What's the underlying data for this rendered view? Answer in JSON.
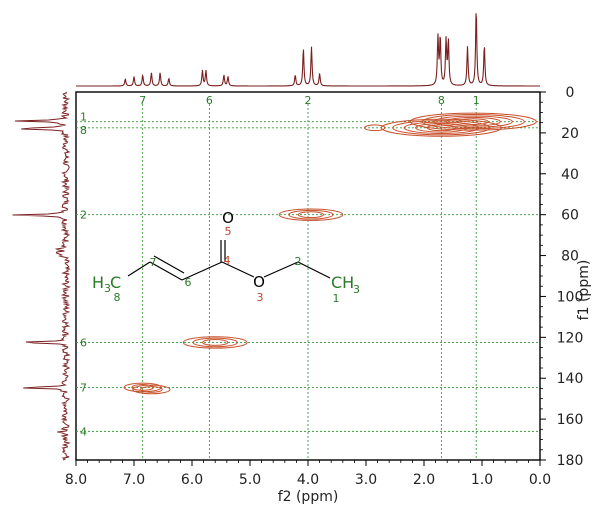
{
  "chart_data": {
    "type": "heatmap",
    "title": "",
    "xlabel": "f2 (ppm)",
    "ylabel": "f1 (ppm)",
    "xlim": [
      8.0,
      0.0
    ],
    "ylim": [
      0,
      180
    ],
    "x_ticks": [
      "8.0",
      "7.0",
      "6.0",
      "5.0",
      "4.0",
      "3.0",
      "2.0",
      "1.0",
      "0.0"
    ],
    "y_ticks": [
      "0",
      "20",
      "40",
      "60",
      "80",
      "100",
      "120",
      "140",
      "160",
      "180"
    ],
    "x_tick_values": [
      8,
      7,
      6,
      5,
      4,
      3,
      2,
      1,
      0
    ],
    "y_tick_values": [
      0,
      20,
      40,
      60,
      80,
      100,
      120,
      140,
      160,
      180
    ],
    "h_peaks": [
      {
        "label": "7",
        "ppm": 6.85
      },
      {
        "label": "6",
        "ppm": 5.7
      },
      {
        "label": "2",
        "ppm": 4.0
      },
      {
        "label": "8",
        "ppm": 1.7
      },
      {
        "label": "1",
        "ppm": 1.1
      }
    ],
    "c_peaks": [
      {
        "label": "1",
        "ppm": 14.5
      },
      {
        "label": "8",
        "ppm": 17.5
      },
      {
        "label": "2",
        "ppm": 60.0
      },
      {
        "label": "6",
        "ppm": 122.5
      },
      {
        "label": "7",
        "ppm": 144.5
      },
      {
        "label": "4",
        "ppm": 166.0
      }
    ],
    "cross_peaks": [
      {
        "f2": 1.15,
        "f1": 14.5,
        "intensity": 1.0
      },
      {
        "f2": 1.7,
        "f1": 17.5,
        "intensity": 0.9
      },
      {
        "f2": 2.85,
        "f1": 17.5,
        "intensity": 0.2
      },
      {
        "f2": 3.95,
        "f1": 60.0,
        "intensity": 0.6
      },
      {
        "f2": 5.6,
        "f1": 122.5,
        "intensity": 0.6
      },
      {
        "f2": 6.85,
        "f1": 144.5,
        "intensity": 0.3
      },
      {
        "f2": 6.7,
        "f1": 145.5,
        "intensity": 0.3
      }
    ],
    "proton_spectrum": [
      {
        "ppm": 7.15,
        "height": 0.09
      },
      {
        "ppm": 7.0,
        "height": 0.12
      },
      {
        "ppm": 6.85,
        "height": 0.14
      },
      {
        "ppm": 6.7,
        "height": 0.17
      },
      {
        "ppm": 6.55,
        "height": 0.17
      },
      {
        "ppm": 6.4,
        "height": 0.1
      },
      {
        "ppm": 5.82,
        "height": 0.2
      },
      {
        "ppm": 5.76,
        "height": 0.2
      },
      {
        "ppm": 5.45,
        "height": 0.14
      },
      {
        "ppm": 5.38,
        "height": 0.12
      },
      {
        "ppm": 4.22,
        "height": 0.14
      },
      {
        "ppm": 4.08,
        "height": 0.48
      },
      {
        "ppm": 3.94,
        "height": 0.5
      },
      {
        "ppm": 3.8,
        "height": 0.16
      },
      {
        "ppm": 1.76,
        "height": 0.62
      },
      {
        "ppm": 1.72,
        "height": 0.62
      },
      {
        "ppm": 1.62,
        "height": 0.58
      },
      {
        "ppm": 1.58,
        "height": 0.58
      },
      {
        "ppm": 1.25,
        "height": 0.5
      },
      {
        "ppm": 1.1,
        "height": 1.0
      },
      {
        "ppm": 0.96,
        "height": 0.52
      }
    ],
    "carbon_spectrum": [
      {
        "ppm": 14.2,
        "height": 0.85
      },
      {
        "ppm": 17.9,
        "height": 0.95
      },
      {
        "ppm": 60.2,
        "height": 0.9
      },
      {
        "ppm": 77.0,
        "height": 0.18
      },
      {
        "ppm": 78.5,
        "height": 0.2
      },
      {
        "ppm": 80.0,
        "height": 0.16
      },
      {
        "ppm": 122.5,
        "height": 0.88
      },
      {
        "ppm": 144.6,
        "height": 0.9
      },
      {
        "ppm": 166.4,
        "height": 0.2
      }
    ],
    "grid": "dashed green lines at assigned peaks",
    "colors": {
      "spectrum": "#7a2020",
      "contour": "#c8502a",
      "grid": "#3a9a3a",
      "labels": "#2a7a2a"
    }
  },
  "molecule": {
    "atoms": {
      "o5": "O",
      "o3": "O",
      "h3c_h": "H",
      "h3c_3": "3",
      "h3c_c": "C",
      "ch3_c": "CH",
      "ch3_3": "3"
    },
    "numbers": {
      "n8": "8",
      "n7": "7",
      "n6": "6",
      "n4": "4",
      "n5": "5",
      "n3": "3",
      "n2": "2",
      "n1": "1"
    }
  }
}
